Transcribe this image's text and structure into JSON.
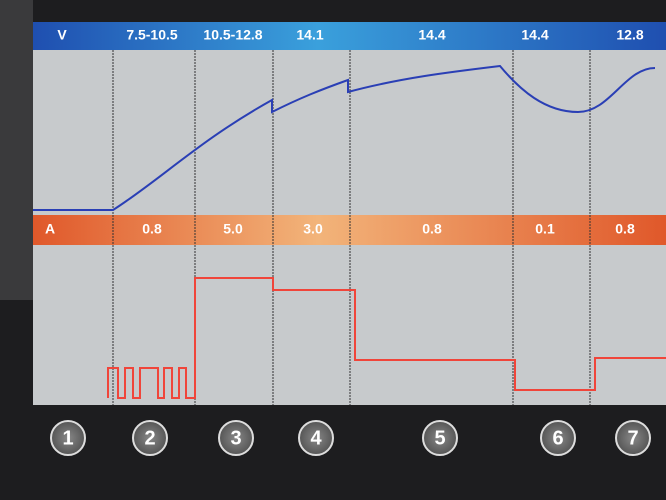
{
  "voltage": {
    "label": "V",
    "stages": [
      "7.5-10.5",
      "10.5-12.8",
      "14.1",
      "14.4",
      "14.4",
      "12.8"
    ]
  },
  "current": {
    "label": "A",
    "stages": [
      "0.8",
      "5.0",
      "3.0",
      "0.8",
      "0.1",
      "0.8"
    ]
  },
  "steps": [
    "1",
    "2",
    "3",
    "4",
    "5",
    "6",
    "7"
  ]
}
